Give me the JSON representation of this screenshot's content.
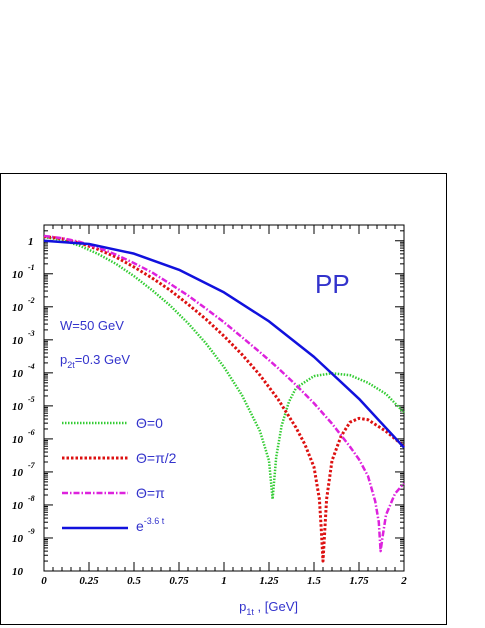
{
  "chart_data": {
    "type": "line",
    "xlabel": "p",
    "xlabel_sub": "1t",
    "xlabel_unit": " , [GeV]",
    "x_ticks": [
      "0",
      "0.25",
      "0.5",
      "0.75",
      "1",
      "1.25",
      "1.5",
      "1.75",
      "2"
    ],
    "xlim": [
      0,
      2
    ],
    "yscale": "log",
    "ylim": [
      1e-10,
      3
    ],
    "y_ticks": [
      {
        "value": 1,
        "base": "1",
        "exp": ""
      },
      {
        "value": 0.1,
        "base": "10",
        "exp": "-1"
      },
      {
        "value": 0.01,
        "base": "10",
        "exp": "-2"
      },
      {
        "value": 0.001,
        "base": "10",
        "exp": "-3"
      },
      {
        "value": 0.0001,
        "base": "10",
        "exp": "-4"
      },
      {
        "value": 1e-05,
        "base": "10",
        "exp": "-5"
      },
      {
        "value": 1e-06,
        "base": "10",
        "exp": "-6"
      },
      {
        "value": 1e-07,
        "base": "10",
        "exp": "-7"
      },
      {
        "value": 1e-08,
        "base": "10",
        "exp": "-8"
      },
      {
        "value": 1e-09,
        "base": "10",
        "exp": "-9"
      },
      {
        "value": 1e-10,
        "base": "10",
        "exp": ""
      }
    ],
    "annotations": {
      "process": "PP",
      "w_label": "W=50 GeV",
      "p2t_main": "p",
      "p2t_sub": "2t",
      "p2t_rest": "=0.3 GeV"
    },
    "legend_position": "left-center",
    "series": [
      {
        "name": "Θ=0",
        "color": "#33cc33",
        "dash": "dotted",
        "x": [
          0,
          0.1,
          0.2,
          0.3,
          0.4,
          0.5,
          0.6,
          0.7,
          0.8,
          0.9,
          1.0,
          1.1,
          1.2,
          1.25,
          1.27,
          1.29,
          1.32,
          1.36,
          1.4,
          1.5,
          1.6,
          1.7,
          1.8,
          1.9,
          2.0
        ],
        "y": [
          1.3,
          1.05,
          0.7,
          0.4,
          0.2,
          0.085,
          0.032,
          0.011,
          0.0032,
          0.00078,
          0.00015,
          2.1e-05,
          1.7e-06,
          2.2e-07,
          1.5e-08,
          2.8e-07,
          2.5e-06,
          1.3e-05,
          3.5e-05,
          8e-05,
          9.7e-05,
          8.5e-05,
          5e-05,
          2.3e-05,
          6.3e-06
        ]
      },
      {
        "name": "Θ=π/2",
        "color": "#dd1111",
        "dash": "dotted",
        "x": [
          0,
          0.1,
          0.2,
          0.3,
          0.4,
          0.5,
          0.6,
          0.7,
          0.8,
          0.9,
          1.0,
          1.1,
          1.2,
          1.3,
          1.4,
          1.45,
          1.5,
          1.53,
          1.54,
          1.55,
          1.57,
          1.6,
          1.65,
          1.7,
          1.75,
          1.8,
          1.9,
          2.0
        ],
        "y": [
          1.35,
          1.15,
          0.85,
          0.55,
          0.32,
          0.16,
          0.075,
          0.032,
          0.012,
          0.0042,
          0.0013,
          0.00036,
          8.5e-05,
          1.6e-05,
          2.2e-06,
          6.7e-07,
          1.4e-07,
          1.5e-08,
          2e-09,
          2e-10,
          1.5e-08,
          2.2e-07,
          1.2e-06,
          3.2e-06,
          4.2e-06,
          3.8e-06,
          1.7e-06,
          6e-07
        ]
      },
      {
        "name": "Θ=π",
        "color": "#dd22dd",
        "dash": "dashdot",
        "x": [
          0,
          0.1,
          0.2,
          0.3,
          0.4,
          0.5,
          0.6,
          0.7,
          0.8,
          0.9,
          1.0,
          1.1,
          1.2,
          1.3,
          1.4,
          1.5,
          1.6,
          1.7,
          1.75,
          1.8,
          1.84,
          1.86,
          1.87,
          1.88,
          1.9,
          1.95,
          2.0
        ],
        "y": [
          1.4,
          1.2,
          0.92,
          0.62,
          0.38,
          0.21,
          0.11,
          0.05,
          0.022,
          0.0088,
          0.0034,
          0.0012,
          0.00042,
          0.00014,
          4.3e-05,
          1.2e-05,
          2.9e-06,
          5.8e-07,
          2.4e-07,
          7.5e-08,
          1.3e-08,
          3e-09,
          4e-10,
          1e-09,
          5e-09,
          2.2e-08,
          4.5e-08
        ]
      },
      {
        "name": "e",
        "name_sup": "-3.6 t",
        "color": "#1111dd",
        "dash": "solid",
        "x": [
          0,
          0.25,
          0.5,
          0.75,
          1.0,
          1.25,
          1.5,
          1.75,
          2.0
        ],
        "y": [
          1.0,
          0.798,
          0.407,
          0.132,
          0.0273,
          0.00363,
          0.000305,
          1.64e-05,
          5.5e-07
        ]
      }
    ]
  }
}
